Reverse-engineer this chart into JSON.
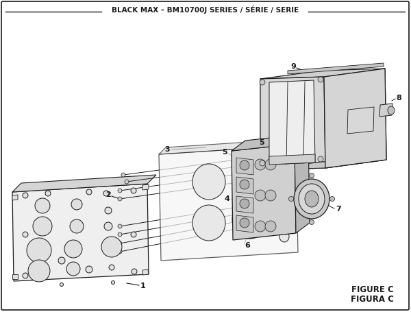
{
  "title": "BLACK MAX – BM10700J SERIES / SÉRIE / SERIE",
  "figure_label": "FIGURE C",
  "figura_label": "FIGURA C",
  "bg_color": "#ffffff",
  "line_color": "#1a1a1a",
  "text_color": "#1a1a1a",
  "face_light": "#f0f0f0",
  "face_mid": "#d8d8d8",
  "face_dark": "#b8b8b8",
  "face_inner": "#e8e8e8"
}
